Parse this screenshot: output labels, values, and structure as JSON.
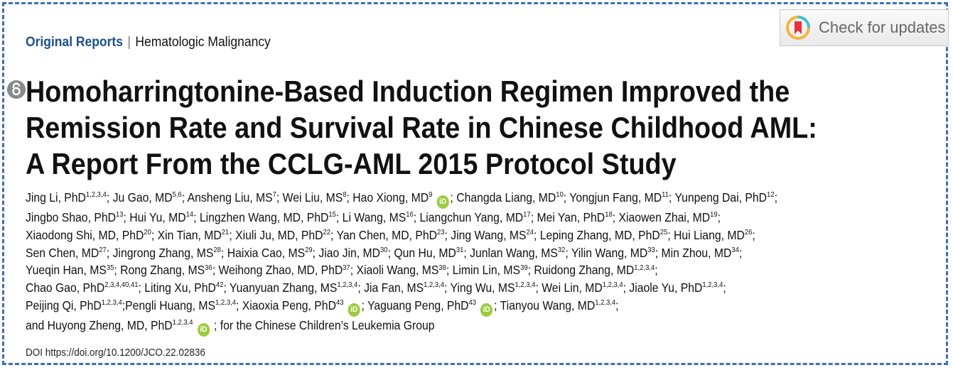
{
  "header": {
    "category": "Original Reports",
    "separator": "|",
    "subcategory": "Hematologic Malignancy"
  },
  "check_for_updates": {
    "label": "Check for updates"
  },
  "title": {
    "line1": "Homoharringtonine-Based Induction Regimen Improved the",
    "line2": "Remission Rate and Survival Rate in Chinese Childhood AML:",
    "line3": "A Report From the CCLG-AML 2015 Protocol Study"
  },
  "authors": [
    {
      "name": "Jing Li, PhD",
      "sup": "1,2,3,4"
    },
    {
      "name": "Ju Gao, MD",
      "sup": "5,6"
    },
    {
      "name": "Ansheng Liu, MS",
      "sup": "7"
    },
    {
      "name": "Wei Liu, MS",
      "sup": "8"
    },
    {
      "name": "Hao Xiong, MD",
      "sup": "9",
      "orcid": true
    },
    {
      "name": "Changda Liang, MD",
      "sup": "10"
    },
    {
      "name": "Yongjun Fang, MD",
      "sup": "11"
    },
    {
      "name": "Yunpeng Dai, PhD",
      "sup": "12"
    },
    {
      "name": "Jingbo Shao, PhD",
      "sup": "13"
    },
    {
      "name": "Hui Yu, MD",
      "sup": "14"
    },
    {
      "name": "Lingzhen Wang, MD, PhD",
      "sup": "15"
    },
    {
      "name": "Li Wang, MS",
      "sup": "16"
    },
    {
      "name": "Liangchun Yang, MD",
      "sup": "17"
    },
    {
      "name": "Mei Yan, PhD",
      "sup": "18"
    },
    {
      "name": "Xiaowen Zhai, MD",
      "sup": "19"
    },
    {
      "name": "Xiaodong Shi, MD, PhD",
      "sup": "20"
    },
    {
      "name": "Xin Tian, MD",
      "sup": "21"
    },
    {
      "name": "Xiuli Ju, MD, PhD",
      "sup": "22"
    },
    {
      "name": "Yan Chen, MD, PhD",
      "sup": "23"
    },
    {
      "name": "Jing Wang, MS",
      "sup": "24"
    },
    {
      "name": "Leping Zhang, MD, PhD",
      "sup": "25"
    },
    {
      "name": "Hui Liang, MD",
      "sup": "26"
    },
    {
      "name": "Sen Chen, MD",
      "sup": "27"
    },
    {
      "name": "Jingrong Zhang, MS",
      "sup": "28"
    },
    {
      "name": "Haixia Cao, MS",
      "sup": "29"
    },
    {
      "name": "Jiao Jin, MD",
      "sup": "30"
    },
    {
      "name": "Qun Hu, MD",
      "sup": "31"
    },
    {
      "name": "Junlan Wang, MS",
      "sup": "32"
    },
    {
      "name": "Yilin Wang, MD",
      "sup": "33"
    },
    {
      "name": "Min Zhou, MD",
      "sup": "34"
    },
    {
      "name": "Yueqin Han, MS",
      "sup": "35"
    },
    {
      "name": "Rong Zhang, MS",
      "sup": "36"
    },
    {
      "name": "Weihong Zhao, MD, PhD",
      "sup": "37"
    },
    {
      "name": "Xiaoli Wang, MS",
      "sup": "38"
    },
    {
      "name": "Limin Lin, MS",
      "sup": "39"
    },
    {
      "name": "Ruidong Zhang, MD",
      "sup": "1,2,3,4"
    },
    {
      "name": "Chao Gao, PhD",
      "sup": "2,3,4,40,41"
    },
    {
      "name": "Liting Xu, PhD",
      "sup": "42"
    },
    {
      "name": "Yuanyuan Zhang, MS",
      "sup": "1,2,3,4"
    },
    {
      "name": "Jia Fan, MS",
      "sup": "1,2,3,4"
    },
    {
      "name": "Ying Wu, MS",
      "sup": "1,2,3,4"
    },
    {
      "name": "Wei Lin, MD",
      "sup": "1,2,3,4"
    },
    {
      "name": "Jiaole Yu, PhD",
      "sup": "1,2,3,4"
    },
    {
      "name": "Peijing Qi, PhD",
      "sup": "1,2,3,4"
    },
    {
      "name": "Pengli Huang, MS",
      "sup": "1,2,3,4"
    },
    {
      "name": "Xiaoxia Peng, PhD",
      "sup": "43",
      "orcid": true
    },
    {
      "name": "Yaguang Peng, PhD",
      "sup": "43",
      "orcid": true
    },
    {
      "name": "Tianyou Wang, MD",
      "sup": "1,2,3,4"
    },
    {
      "name": "Huyong Zheng, MD, PhD",
      "sup": "1,2,3,4",
      "orcid": true
    }
  ],
  "author_lines": [
    [
      0,
      1,
      2,
      3,
      4,
      5,
      6,
      7
    ],
    [
      8,
      9,
      10,
      11,
      12,
      13,
      14
    ],
    [
      15,
      16,
      17,
      18,
      19,
      20,
      21
    ],
    [
      22,
      23,
      24,
      25,
      26,
      27,
      28,
      29
    ],
    [
      30,
      31,
      32,
      33,
      34,
      35
    ],
    [
      36,
      37,
      38,
      39,
      40,
      41,
      42
    ],
    [
      43,
      44,
      45,
      46,
      47
    ],
    [
      48
    ]
  ],
  "author_joiner": "and",
  "group_suffix": "; for the Chinese Children’s Leukemia Group",
  "orcid_label": "iD",
  "doi": {
    "label": "DOI",
    "url": "https://doi.org/10.1200/JCO.22.02836"
  }
}
